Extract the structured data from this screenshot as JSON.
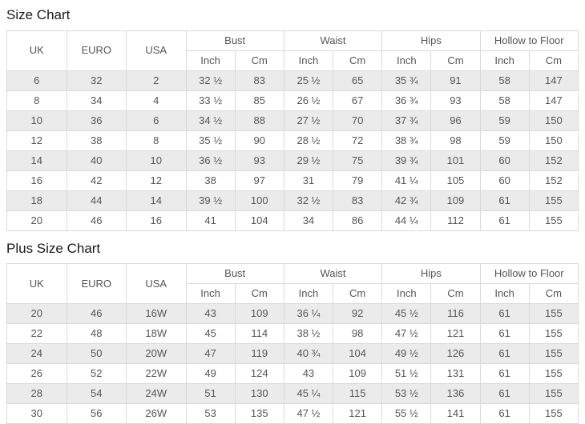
{
  "colors": {
    "stripe": "#ebebeb",
    "border": "#d9d9d9",
    "text": "#555555",
    "title": "#1a1a1a",
    "background": "#ffffff"
  },
  "tables": [
    {
      "title": "Size Chart",
      "columns": [
        "UK",
        "EURO",
        "USA"
      ],
      "groups": [
        "Bust",
        "Waist",
        "Hips",
        "Hollow to Floor"
      ],
      "subheaders": [
        "Inch",
        "Cm"
      ],
      "rows": [
        [
          "6",
          "32",
          "2",
          "32 ½",
          "83",
          "25 ½",
          "65",
          "35 ¾",
          "91",
          "58",
          "147"
        ],
        [
          "8",
          "34",
          "4",
          "33 ½",
          "85",
          "26 ½",
          "67",
          "36 ¾",
          "93",
          "58",
          "147"
        ],
        [
          "10",
          "36",
          "6",
          "34 ½",
          "88",
          "27 ½",
          "70",
          "37 ¾",
          "96",
          "59",
          "150"
        ],
        [
          "12",
          "38",
          "8",
          "35 ½",
          "90",
          "28 ½",
          "72",
          "38 ¾",
          "98",
          "59",
          "150"
        ],
        [
          "14",
          "40",
          "10",
          "36 ½",
          "93",
          "29 ½",
          "75",
          "39 ¾",
          "101",
          "60",
          "152"
        ],
        [
          "16",
          "42",
          "12",
          "38",
          "97",
          "31",
          "79",
          "41 ¼",
          "105",
          "60",
          "152"
        ],
        [
          "18",
          "44",
          "14",
          "39 ½",
          "100",
          "32 ½",
          "83",
          "42 ¾",
          "109",
          "61",
          "155"
        ],
        [
          "20",
          "46",
          "16",
          "41",
          "104",
          "34",
          "86",
          "44 ¼",
          "112",
          "61",
          "155"
        ]
      ]
    },
    {
      "title": "Plus Size Chart",
      "columns": [
        "UK",
        "EURO",
        "USA"
      ],
      "groups": [
        "Bust",
        "Waist",
        "Hips",
        "Hollow to Floor"
      ],
      "subheaders": [
        "Inch",
        "Cm"
      ],
      "rows": [
        [
          "20",
          "46",
          "16W",
          "43",
          "109",
          "36 ¼",
          "92",
          "45 ½",
          "116",
          "61",
          "155"
        ],
        [
          "22",
          "48",
          "18W",
          "45",
          "114",
          "38 ½",
          "98",
          "47 ½",
          "121",
          "61",
          "155"
        ],
        [
          "24",
          "50",
          "20W",
          "47",
          "119",
          "40 ¾",
          "104",
          "49 ½",
          "126",
          "61",
          "155"
        ],
        [
          "26",
          "52",
          "22W",
          "49",
          "124",
          "43",
          "109",
          "51 ½",
          "131",
          "61",
          "155"
        ],
        [
          "28",
          "54",
          "24W",
          "51",
          "130",
          "45 ¼",
          "115",
          "53 ½",
          "136",
          "61",
          "155"
        ],
        [
          "30",
          "56",
          "26W",
          "53",
          "135",
          "47 ½",
          "121",
          "55 ½",
          "141",
          "61",
          "155"
        ]
      ]
    }
  ]
}
